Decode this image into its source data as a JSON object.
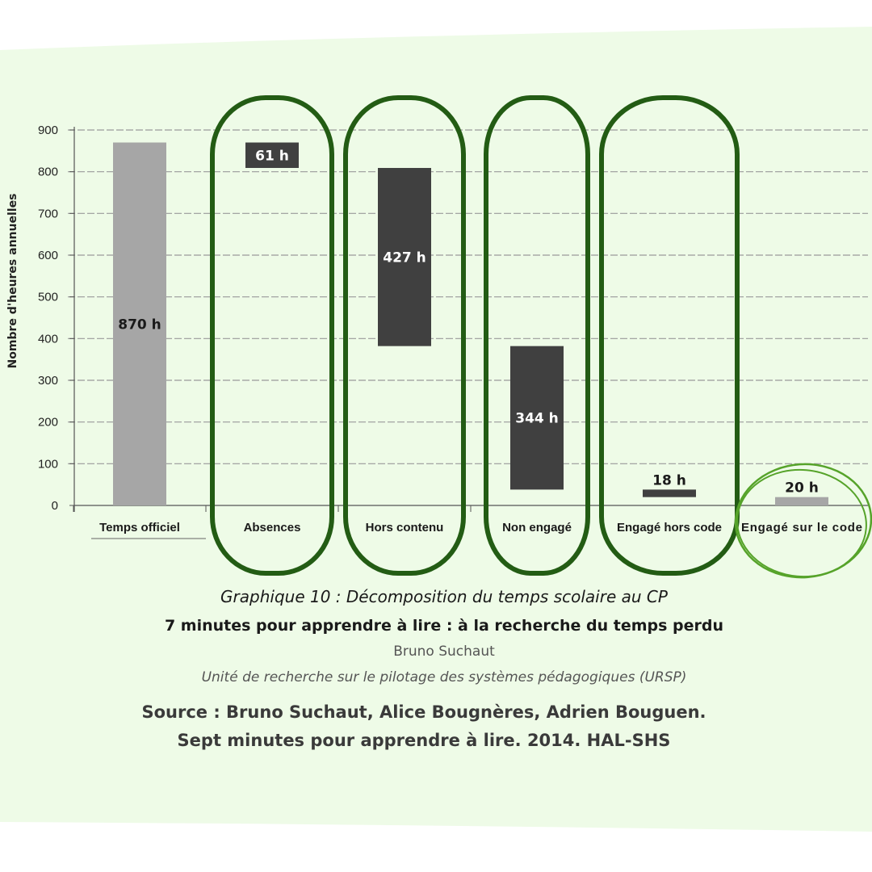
{
  "colors": {
    "panel_bg": "#eefbe7",
    "bar_light": "#a6a6a6",
    "bar_dark": "#404040",
    "circle_dark_green": "#235c14",
    "circle_light_green": "#56a32a",
    "grid": "#9a9a9a",
    "axis_text": "#222222"
  },
  "chart_data": {
    "type": "bar",
    "subtype": "waterfall",
    "title": "Graphique 10 : Décomposition du temps scolaire au CP",
    "ylabel": "Nombre d'heures annuelles",
    "xlabel": "",
    "ylim": [
      0,
      900
    ],
    "yticks": [
      0,
      100,
      200,
      300,
      400,
      500,
      600,
      700,
      800,
      900
    ],
    "grid": true,
    "categories": [
      "Temps officiel",
      "Absences",
      "Hors contenu",
      "Non engagé",
      "Engagé hors code",
      "Engagé sur le code"
    ],
    "bars": [
      {
        "category": "Temps officiel",
        "bottom": 0,
        "top": 870,
        "value": 870,
        "label": "870 h",
        "style": "light",
        "label_position": "inside"
      },
      {
        "category": "Absences",
        "bottom": 809,
        "top": 870,
        "value": 61,
        "label": "61 h",
        "style": "dark",
        "label_position": "inside"
      },
      {
        "category": "Hors contenu",
        "bottom": 382,
        "top": 809,
        "value": 427,
        "label": "427 h",
        "style": "dark",
        "label_position": "inside"
      },
      {
        "category": "Non engagé",
        "bottom": 38,
        "top": 382,
        "value": 344,
        "label": "344 h",
        "style": "dark",
        "label_position": "inside"
      },
      {
        "category": "Engagé hors code",
        "bottom": 20,
        "top": 38,
        "value": 18,
        "label": "18 h",
        "style": "dark",
        "label_position": "above"
      },
      {
        "category": "Engagé sur le code",
        "bottom": 0,
        "top": 20,
        "value": 20,
        "label": "20 h",
        "style": "light",
        "label_position": "above"
      }
    ],
    "highlighted_categories": [
      "Absences",
      "Hors contenu",
      "Non engagé",
      "Engagé hors code"
    ],
    "emphasized_category": "Engagé sur le code"
  },
  "captions": {
    "graph_title": "Graphique 10 : Décomposition du temps scolaire au CP",
    "doc_title": "7 minutes pour apprendre à lire : à la recherche du temps perdu",
    "author": "Bruno Suchaut",
    "unit": "Unité de recherche sur le pilotage des systèmes pédagogiques (URSP)"
  },
  "source": {
    "line1": "Source : Bruno Suchaut, Alice Bougnères, Adrien Bouguen.",
    "line2": "Sept minutes pour apprendre à lire. 2014. HAL-SHS"
  }
}
